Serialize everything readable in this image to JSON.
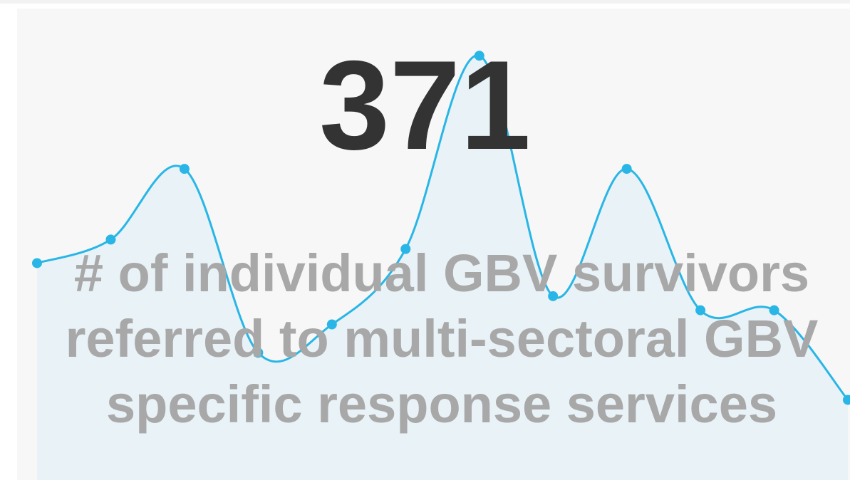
{
  "chart_data": {
    "type": "line",
    "kpi": "371",
    "title": "# of individual GBV survivors referred to multi-sectoral GBV specific response services",
    "values": [
      46,
      51,
      66,
      27,
      33,
      49,
      90,
      39,
      66,
      36,
      36,
      17
    ],
    "color": "#29b6e6",
    "area_color": "#e8f2f7",
    "ylim": [
      0,
      100
    ]
  }
}
